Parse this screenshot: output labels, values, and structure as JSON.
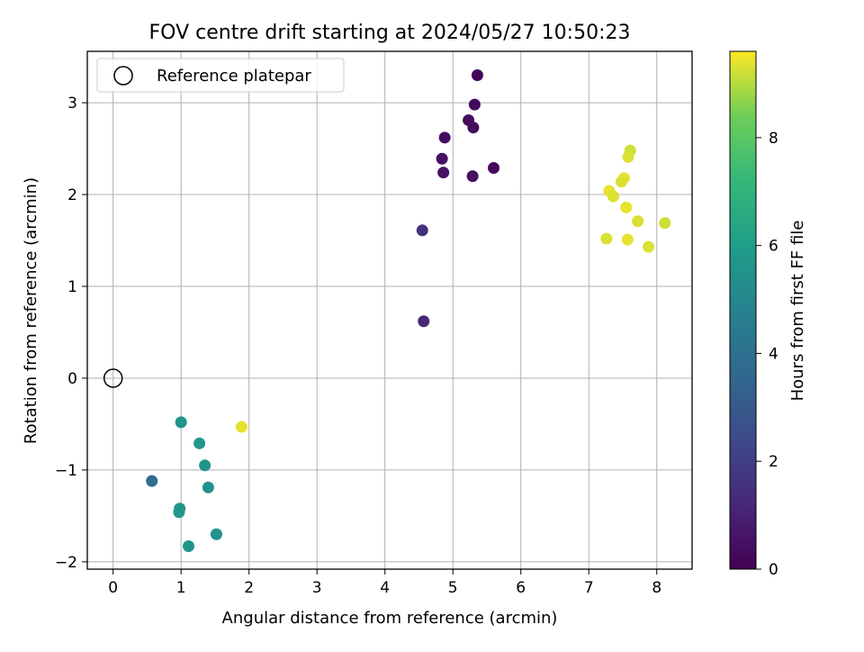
{
  "chart_data": {
    "type": "scatter",
    "title": "FOV centre drift starting at 2024/05/27 10:50:23",
    "xlabel": "Angular distance from reference (arcmin)",
    "ylabel": "Rotation from reference (arcmin)",
    "xlim": [
      -0.38,
      8.52
    ],
    "ylim": [
      -2.08,
      3.56
    ],
    "xticks": [
      0,
      1,
      2,
      3,
      4,
      5,
      6,
      7,
      8
    ],
    "yticks": [
      -2,
      -1,
      0,
      1,
      2,
      3
    ],
    "xtick_labels": [
      "0",
      "1",
      "2",
      "3",
      "4",
      "5",
      "6",
      "7",
      "8"
    ],
    "ytick_labels": [
      "−2",
      "−1",
      "0",
      "1",
      "2",
      "3"
    ],
    "grid": true,
    "legend": {
      "position": "top-left",
      "entries": [
        "Reference platepar"
      ]
    },
    "reference_point": {
      "name": "Reference platepar",
      "x": 0,
      "y": 0
    },
    "colorbar": {
      "label": "Hours from first FF file",
      "colormap": "viridis",
      "range": [
        0,
        9.6
      ],
      "ticks": [
        0,
        2,
        4,
        6,
        8
      ],
      "tick_labels": [
        "0",
        "2",
        "4",
        "6",
        "8"
      ]
    },
    "points": [
      {
        "x": 5.36,
        "y": 3.3,
        "hours": 0.1
      },
      {
        "x": 5.32,
        "y": 2.98,
        "hours": 0.25
      },
      {
        "x": 5.23,
        "y": 2.81,
        "hours": 0.35
      },
      {
        "x": 5.3,
        "y": 2.73,
        "hours": 0.3
      },
      {
        "x": 4.88,
        "y": 2.62,
        "hours": 0.4
      },
      {
        "x": 4.84,
        "y": 2.39,
        "hours": 0.5
      },
      {
        "x": 5.6,
        "y": 2.29,
        "hours": 0.2
      },
      {
        "x": 4.86,
        "y": 2.24,
        "hours": 0.55
      },
      {
        "x": 5.29,
        "y": 2.2,
        "hours": 0.45
      },
      {
        "x": 4.55,
        "y": 1.61,
        "hours": 1.5
      },
      {
        "x": 4.57,
        "y": 0.62,
        "hours": 1.2
      },
      {
        "x": 0.57,
        "y": -1.12,
        "hours": 3.8
      },
      {
        "x": 1.0,
        "y": -0.48,
        "hours": 5.6
      },
      {
        "x": 1.27,
        "y": -0.71,
        "hours": 5.7
      },
      {
        "x": 1.35,
        "y": -0.95,
        "hours": 5.6
      },
      {
        "x": 1.4,
        "y": -1.19,
        "hours": 5.5
      },
      {
        "x": 0.98,
        "y": -1.42,
        "hours": 5.6
      },
      {
        "x": 0.97,
        "y": -1.46,
        "hours": 5.7
      },
      {
        "x": 1.52,
        "y": -1.7,
        "hours": 5.5
      },
      {
        "x": 1.11,
        "y": -1.83,
        "hours": 5.6
      },
      {
        "x": 1.89,
        "y": -0.53,
        "hours": 9.4
      },
      {
        "x": 7.61,
        "y": 2.48,
        "hours": 9.2
      },
      {
        "x": 7.58,
        "y": 2.41,
        "hours": 9.3
      },
      {
        "x": 7.52,
        "y": 2.18,
        "hours": 9.4
      },
      {
        "x": 7.48,
        "y": 2.14,
        "hours": 9.3
      },
      {
        "x": 7.3,
        "y": 2.04,
        "hours": 9.4
      },
      {
        "x": 7.36,
        "y": 1.98,
        "hours": 9.3
      },
      {
        "x": 7.55,
        "y": 1.86,
        "hours": 9.4
      },
      {
        "x": 7.72,
        "y": 1.71,
        "hours": 9.3
      },
      {
        "x": 8.12,
        "y": 1.69,
        "hours": 9.2
      },
      {
        "x": 7.26,
        "y": 1.52,
        "hours": 9.3
      },
      {
        "x": 7.57,
        "y": 1.51,
        "hours": 9.4
      },
      {
        "x": 7.88,
        "y": 1.43,
        "hours": 9.3
      }
    ]
  }
}
